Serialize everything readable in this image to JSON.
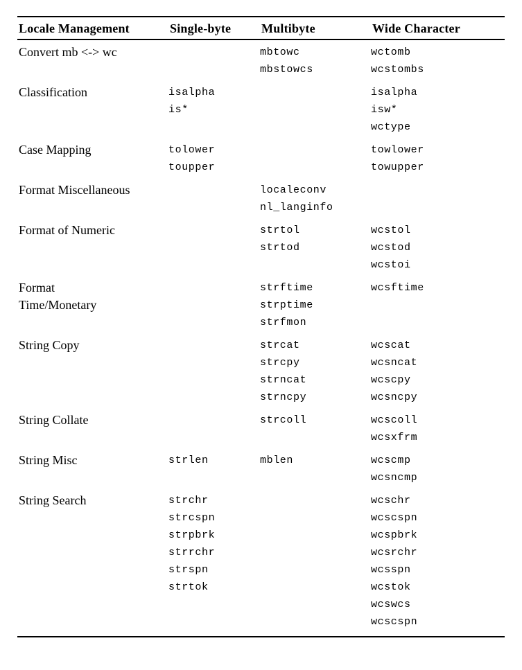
{
  "page": {
    "background_color": "#ffffff",
    "text_color": "#000000",
    "rule_color": "#000000"
  },
  "table": {
    "headers": [
      "Locale Management",
      "Single-byte",
      "Multibyte",
      "Wide Character"
    ],
    "rows": [
      {
        "label": [
          "Convert mb <-> wc"
        ],
        "single_byte": [],
        "multibyte": [
          "mbtowc",
          "mbstowcs"
        ],
        "wide_character": [
          "wctomb",
          "wcstombs"
        ]
      },
      {
        "label": [
          "Classification"
        ],
        "single_byte": [
          "isalpha",
          "is*"
        ],
        "multibyte": [],
        "wide_character": [
          "isalpha",
          "isw*",
          "wctype"
        ]
      },
      {
        "label": [
          "Case Mapping"
        ],
        "single_byte": [
          "tolower",
          "toupper"
        ],
        "multibyte": [],
        "wide_character": [
          "towlower",
          "towupper"
        ]
      },
      {
        "label": [
          "Format Miscellaneous"
        ],
        "single_byte": [],
        "multibyte": [
          "localeconv",
          "nl_langinfo"
        ],
        "wide_character": []
      },
      {
        "label": [
          "Format of Numeric"
        ],
        "single_byte": [],
        "multibyte": [
          "strtol",
          "strtod"
        ],
        "wide_character": [
          "wcstol",
          "wcstod",
          "wcstoi"
        ]
      },
      {
        "label": [
          "Format",
          "Time/Monetary"
        ],
        "single_byte": [],
        "multibyte": [
          "strftime",
          "strptime",
          "strfmon"
        ],
        "wide_character": [
          "wcsftime"
        ]
      },
      {
        "label": [
          "String Copy"
        ],
        "single_byte": [],
        "multibyte": [
          "strcat",
          "strcpy",
          "strncat",
          "strncpy"
        ],
        "wide_character": [
          "wcscat",
          "wcsncat",
          "wcscpy",
          "wcsncpy"
        ]
      },
      {
        "label": [
          "String Collate"
        ],
        "single_byte": [],
        "multibyte": [
          "strcoll"
        ],
        "wide_character": [
          "wcscoll",
          "wcsxfrm"
        ]
      },
      {
        "label": [
          "String Misc"
        ],
        "single_byte": [
          "strlen"
        ],
        "multibyte": [
          "mblen"
        ],
        "wide_character": [
          "wcscmp",
          "wcsncmp"
        ]
      },
      {
        "label": [
          "String Search"
        ],
        "single_byte": [
          "strchr",
          "strcspn",
          "strpbrk",
          "strrchr",
          "strspn",
          "strtok"
        ],
        "multibyte": [],
        "wide_character": [
          "wcschr",
          "wcscspn",
          "wcspbrk",
          "wcsrchr",
          "wcsspn",
          "wcstok",
          "wcswcs",
          "wcscspn"
        ]
      }
    ]
  }
}
